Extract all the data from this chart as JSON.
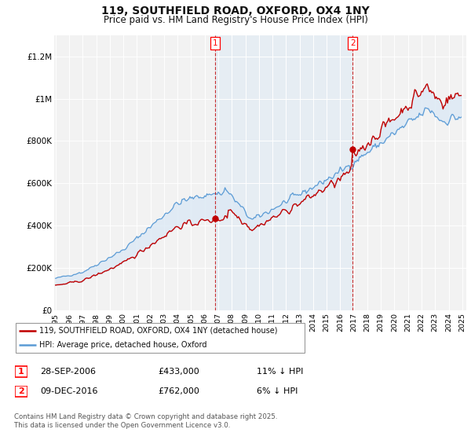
{
  "title": "119, SOUTHFIELD ROAD, OXFORD, OX4 1NY",
  "subtitle": "Price paid vs. HM Land Registry's House Price Index (HPI)",
  "legend_line1": "119, SOUTHFIELD ROAD, OXFORD, OX4 1NY (detached house)",
  "legend_line2": "HPI: Average price, detached house, Oxford",
  "footer": "Contains HM Land Registry data © Crown copyright and database right 2025.\nThis data is licensed under the Open Government Licence v3.0.",
  "transaction1_date": "28-SEP-2006",
  "transaction1_price": "£433,000",
  "transaction1_hpi": "11% ↓ HPI",
  "transaction1_year": 2006.75,
  "transaction1_value": 433000,
  "transaction2_date": "09-DEC-2016",
  "transaction2_price": "£762,000",
  "transaction2_hpi": "6% ↓ HPI",
  "transaction2_year": 2016.917,
  "transaction2_value": 762000,
  "vline1_year": 2006.75,
  "vline2_year": 2016.917,
  "ylim": [
    0,
    1300000
  ],
  "xlim_min": 1994.9,
  "xlim_max": 2025.3,
  "yticks": [
    0,
    200000,
    400000,
    600000,
    800000,
    1000000,
    1200000
  ],
  "ytick_labels": [
    "£0",
    "£200K",
    "£400K",
    "£600K",
    "£800K",
    "£1M",
    "£1.2M"
  ],
  "hpi_color": "#5b9bd5",
  "price_color": "#c00000",
  "shade_color": "#dce9f5",
  "vline_color": "#c00000",
  "vline_shade": "#dce9f5",
  "background_color": "#ffffff",
  "plot_bg_color": "#f2f2f2",
  "grid_color": "#ffffff"
}
